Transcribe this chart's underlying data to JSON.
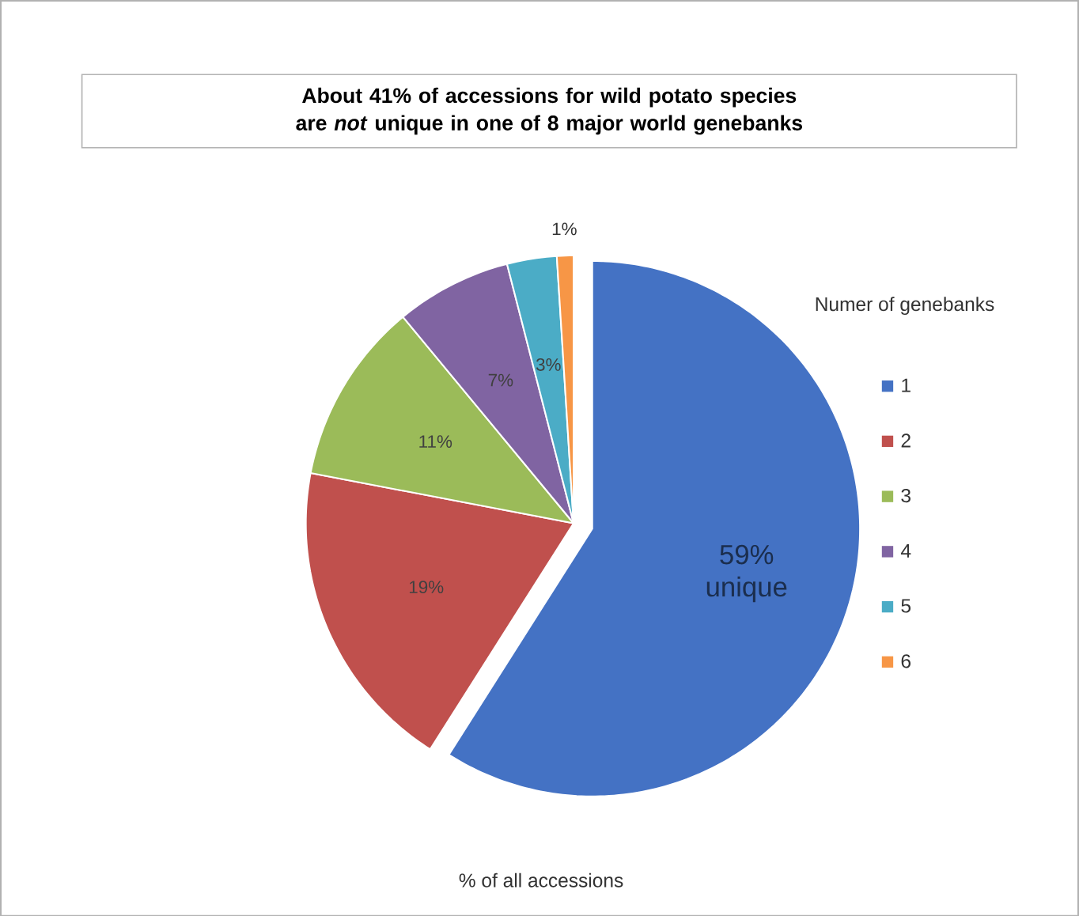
{
  "chart_data": {
    "type": "pie",
    "title": "About 41% of accessions for wild potato species are *not* unique in one of 8 major world genebanks",
    "legend_title": "Numer of genebanks",
    "categories": [
      "1",
      "2",
      "3",
      "4",
      "5",
      "6"
    ],
    "values": [
      59,
      19,
      11,
      7,
      3,
      1
    ],
    "value_labels": [
      "59% unique",
      "19%",
      "11%",
      "7%",
      "3%",
      "1%"
    ],
    "colors": [
      "#4472c4",
      "#c0504d",
      "#9bbb59",
      "#8064a2",
      "#4bacc6",
      "#f79646"
    ],
    "legend": "right",
    "annotations": [
      "% of all accessions"
    ]
  }
}
